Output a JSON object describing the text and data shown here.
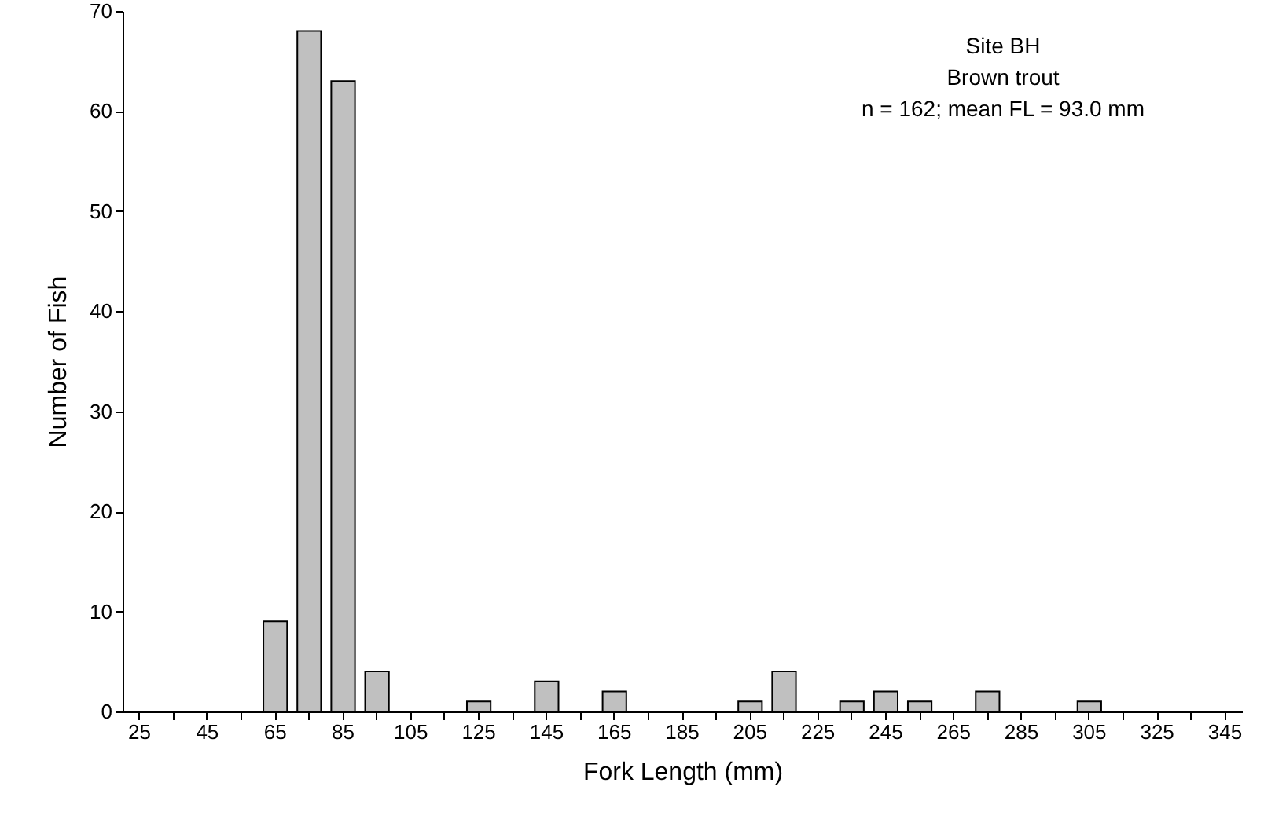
{
  "chart_data": {
    "type": "bar",
    "xlabel": "Fork Length (mm)",
    "ylabel": "Number of Fish",
    "annotations": [
      "Site BH",
      "Brown trout",
      "n = 162; mean FL = 93.0 mm"
    ],
    "categories": [
      "25",
      null,
      "45",
      null,
      "65",
      null,
      "85",
      null,
      "105",
      null,
      "125",
      null,
      "145",
      null,
      "165",
      null,
      "185",
      null,
      "205",
      null,
      "225",
      null,
      "245",
      null,
      "265",
      null,
      "285",
      null,
      "305",
      null,
      "325",
      null,
      "345"
    ],
    "values": [
      0,
      0,
      0,
      0,
      9,
      68,
      63,
      4,
      0,
      0,
      1,
      0,
      3,
      0,
      2,
      0,
      0,
      0,
      1,
      4,
      0,
      1,
      2,
      1,
      0,
      2,
      0,
      0,
      1,
      0,
      0,
      0,
      0
    ],
    "color": "#c0c0c0",
    "ylim": [
      0,
      70
    ],
    "yticks": [
      0,
      10,
      20,
      30,
      40,
      50,
      60,
      70
    ],
    "grid": false
  }
}
